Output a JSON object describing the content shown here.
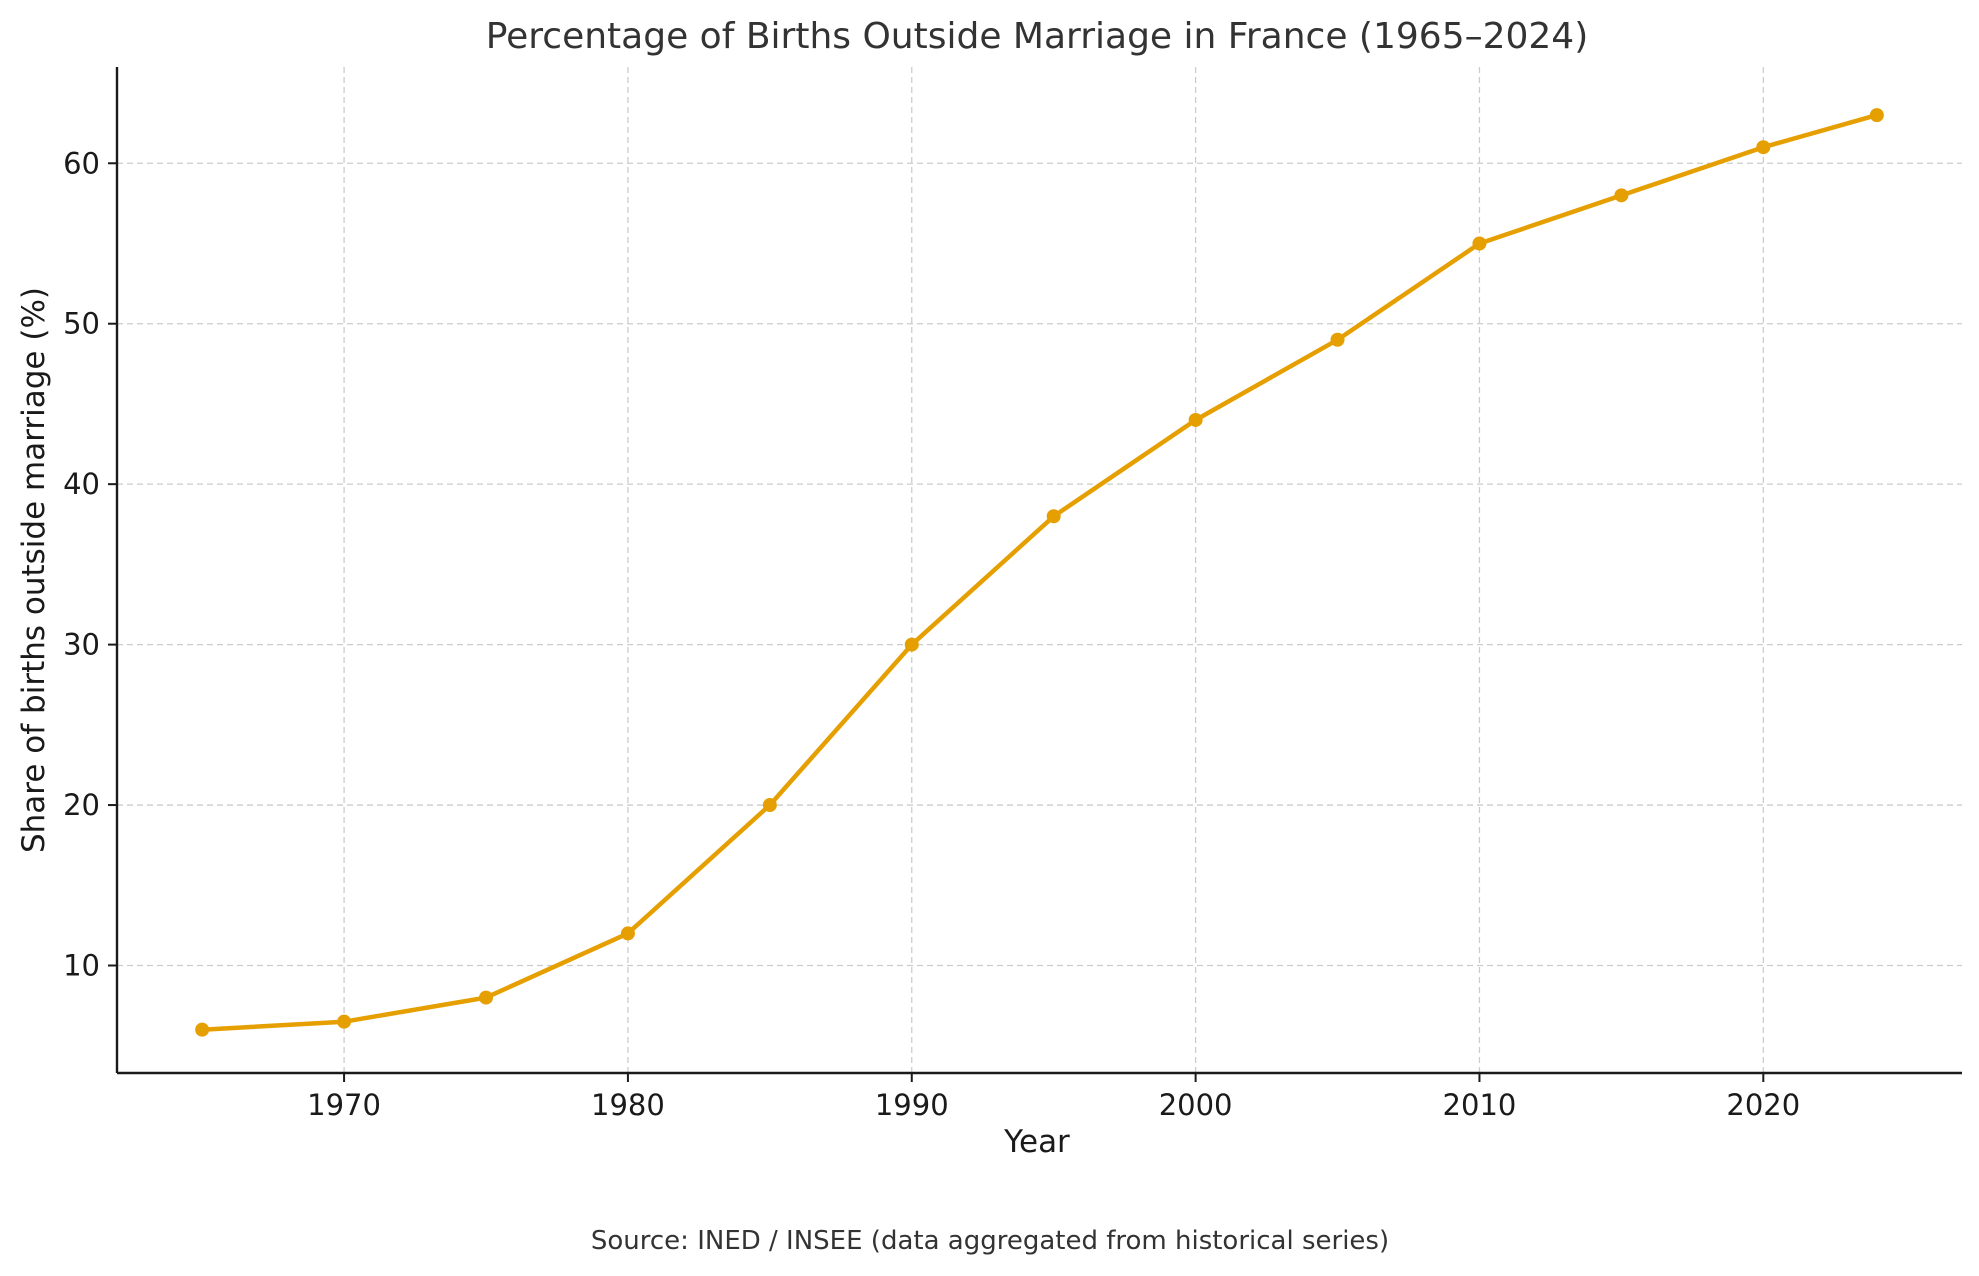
{
  "chart_data": {
    "type": "line",
    "title": "Percentage of Births Outside Marriage in France (1965–2024)",
    "xlabel": "Year",
    "ylabel": "Share of births outside marriage (%)",
    "source": "Source: INED / INSEE (data aggregated from historical series)",
    "xlim": [
      1962,
      2027
    ],
    "ylim": [
      3.3,
      66
    ],
    "x_ticks": [
      1970,
      1980,
      1990,
      2000,
      2010,
      2020
    ],
    "y_ticks": [
      10,
      20,
      30,
      40,
      50,
      60
    ],
    "grid": true,
    "series": [
      {
        "x": [
          1965,
          1970,
          1975,
          1980,
          1985,
          1990,
          1995,
          2000,
          2005,
          2010,
          2015,
          2020,
          2024
        ],
        "values": [
          6,
          6.5,
          8,
          12,
          20,
          30,
          38,
          44,
          49,
          55,
          58,
          61,
          63
        ],
        "color": "#E69F00"
      }
    ]
  }
}
